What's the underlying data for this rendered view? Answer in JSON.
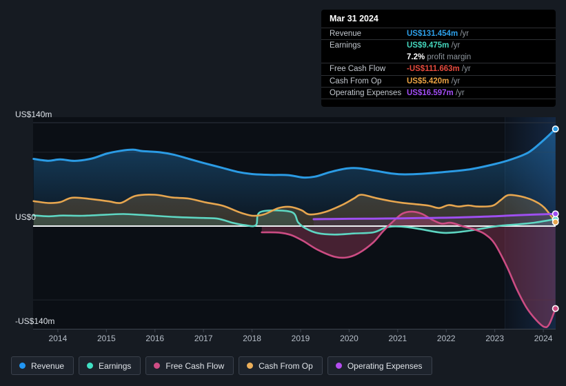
{
  "tooltip": {
    "date": "Mar 31 2024",
    "rows": [
      {
        "label": "Revenue",
        "value": "US$131.454m",
        "suffix": " /yr",
        "color": "#2d9fe8"
      },
      {
        "label": "Earnings",
        "value": "US$9.475m",
        "suffix": " /yr",
        "color": "#45d6bd"
      },
      {
        "label": "",
        "value": "7.2%",
        "suffix": " profit margin",
        "color": "#ffffff"
      },
      {
        "label": "Free Cash Flow",
        "value": "-US$111.663m",
        "suffix": " /yr",
        "color": "#e64a3d"
      },
      {
        "label": "Cash From Op",
        "value": "US$5.420m",
        "suffix": " /yr",
        "color": "#eaa243"
      },
      {
        "label": "Operating Expenses",
        "value": "US$16.597m",
        "suffix": " /yr",
        "color": "#a14df5"
      }
    ]
  },
  "y_axis": {
    "top_label": "US$140m",
    "zero_label": "US$0",
    "bottom_label": "-US$140m"
  },
  "x_axis": {
    "years": [
      "2014",
      "2015",
      "2016",
      "2017",
      "2018",
      "2019",
      "2020",
      "2021",
      "2022",
      "2023",
      "2024"
    ]
  },
  "legend": [
    {
      "label": "Revenue",
      "color": "#2196f3"
    },
    {
      "label": "Earnings",
      "color": "#40e0c4"
    },
    {
      "label": "Free Cash Flow",
      "color": "#cf4d85"
    },
    {
      "label": "Cash From Op",
      "color": "#ecaf5a"
    },
    {
      "label": "Operating Expenses",
      "color": "#b44df0"
    }
  ],
  "chart_data": {
    "type": "area",
    "title": "Earnings and revenue history (US$ millions per year)",
    "x_range": [
      2013.49,
      2024.26
    ],
    "ylim": [
      -140,
      140
    ],
    "y_gridlines": [
      140,
      100,
      0,
      -100,
      -140
    ],
    "highlight_band": {
      "from": 2023.21,
      "to": 2024.27
    },
    "legend_position": "bottom",
    "series": [
      {
        "name": "Revenue",
        "key": "revenue",
        "color": "#2b9be4",
        "points": [
          [
            2013.5,
            91
          ],
          [
            2013.8,
            88.5
          ],
          [
            2014.05,
            90.3
          ],
          [
            2014.35,
            88.3
          ],
          [
            2014.7,
            91.5
          ],
          [
            2015,
            98
          ],
          [
            2015.3,
            102
          ],
          [
            2015.55,
            103.5
          ],
          [
            2015.75,
            101.5
          ],
          [
            2016.1,
            100
          ],
          [
            2016.4,
            96.5
          ],
          [
            2016.7,
            91
          ],
          [
            2017,
            85.5
          ],
          [
            2017.35,
            79.5
          ],
          [
            2017.7,
            73.5
          ],
          [
            2018,
            70.5
          ],
          [
            2018.4,
            69.3
          ],
          [
            2018.75,
            69
          ],
          [
            2019.05,
            65.8
          ],
          [
            2019.3,
            67
          ],
          [
            2019.6,
            73
          ],
          [
            2019.95,
            78
          ],
          [
            2020.2,
            78.3
          ],
          [
            2020.55,
            74.8
          ],
          [
            2020.9,
            71
          ],
          [
            2021.15,
            70
          ],
          [
            2021.5,
            70.8
          ],
          [
            2022,
            73.5
          ],
          [
            2022.5,
            77
          ],
          [
            2023,
            84
          ],
          [
            2023.35,
            90.5
          ],
          [
            2023.7,
            100
          ],
          [
            2024,
            116
          ],
          [
            2024.25,
            131.454
          ]
        ]
      },
      {
        "name": "Earnings",
        "key": "earnings",
        "color": "#5ed6c2",
        "points": [
          [
            2013.5,
            14.5
          ],
          [
            2013.8,
            13.3
          ],
          [
            2014.1,
            14.3
          ],
          [
            2014.5,
            14
          ],
          [
            2015,
            15.5
          ],
          [
            2015.35,
            16.3
          ],
          [
            2015.7,
            15.2
          ],
          [
            2016,
            14
          ],
          [
            2016.5,
            12
          ],
          [
            2017,
            11
          ],
          [
            2017.3,
            10
          ],
          [
            2017.6,
            4.5
          ],
          [
            2017.85,
            1.3
          ],
          [
            2018.08,
            1.3
          ],
          [
            2018.18,
            19.3
          ],
          [
            2018.8,
            19.3
          ],
          [
            2018.95,
            5
          ],
          [
            2019.1,
            -3
          ],
          [
            2019.35,
            -9.5
          ],
          [
            2019.7,
            -11.5
          ],
          [
            2020.1,
            -10
          ],
          [
            2020.5,
            -8.5
          ],
          [
            2020.75,
            -2
          ],
          [
            2020.95,
            -0.5
          ],
          [
            2021.2,
            -1.5
          ],
          [
            2021.5,
            -4.5
          ],
          [
            2021.9,
            -9
          ],
          [
            2022.2,
            -8.5
          ],
          [
            2022.6,
            -5
          ],
          [
            2022.95,
            -1
          ],
          [
            2023.2,
            1
          ],
          [
            2023.5,
            2.5
          ],
          [
            2023.85,
            5
          ],
          [
            2024.25,
            9.475
          ]
        ]
      },
      {
        "name": "Free Cash Flow",
        "key": "free_cash_flow",
        "color": "#cc4c83",
        "points": [
          [
            2018.2,
            -8.5
          ],
          [
            2018.55,
            -8.8
          ],
          [
            2018.8,
            -12
          ],
          [
            2019.05,
            -20
          ],
          [
            2019.35,
            -32
          ],
          [
            2019.7,
            -41.5
          ],
          [
            2019.95,
            -42.5
          ],
          [
            2020.2,
            -36.5
          ],
          [
            2020.5,
            -22
          ],
          [
            2020.7,
            -7
          ],
          [
            2020.9,
            6
          ],
          [
            2021.1,
            17
          ],
          [
            2021.3,
            19.5
          ],
          [
            2021.5,
            16.5
          ],
          [
            2021.7,
            9
          ],
          [
            2021.9,
            3.5
          ],
          [
            2022.1,
            4.5
          ],
          [
            2022.35,
            -0.5
          ],
          [
            2022.6,
            -5
          ],
          [
            2022.8,
            -11
          ],
          [
            2023,
            -24
          ],
          [
            2023.25,
            -55
          ],
          [
            2023.45,
            -85
          ],
          [
            2023.65,
            -110
          ],
          [
            2023.85,
            -127
          ],
          [
            2024.02,
            -136.5
          ],
          [
            2024.12,
            -133
          ],
          [
            2024.25,
            -111.663
          ]
        ]
      },
      {
        "name": "Cash From Op",
        "key": "cash_from_op",
        "color": "#e7a64f",
        "points": [
          [
            2013.5,
            33.8
          ],
          [
            2013.8,
            31.3
          ],
          [
            2014.05,
            32.5
          ],
          [
            2014.3,
            38.5
          ],
          [
            2014.7,
            36.5
          ],
          [
            2015.05,
            33.5
          ],
          [
            2015.3,
            31.5
          ],
          [
            2015.6,
            41
          ],
          [
            2016,
            42.5
          ],
          [
            2016.35,
            38.8
          ],
          [
            2016.7,
            37.2
          ],
          [
            2017.05,
            32
          ],
          [
            2017.4,
            27.5
          ],
          [
            2017.75,
            18.5
          ],
          [
            2018.02,
            14
          ],
          [
            2018.25,
            16
          ],
          [
            2018.55,
            24.5
          ],
          [
            2018.78,
            26
          ],
          [
            2019.02,
            21.5
          ],
          [
            2019.18,
            15.8
          ],
          [
            2019.5,
            19
          ],
          [
            2019.85,
            28.5
          ],
          [
            2020.1,
            37.5
          ],
          [
            2020.25,
            42.5
          ],
          [
            2020.55,
            38
          ],
          [
            2020.85,
            34
          ],
          [
            2021.1,
            31.5
          ],
          [
            2021.4,
            29.5
          ],
          [
            2021.65,
            27.5
          ],
          [
            2021.85,
            24.5
          ],
          [
            2022.05,
            28.5
          ],
          [
            2022.25,
            26.5
          ],
          [
            2022.45,
            28
          ],
          [
            2022.65,
            26.5
          ],
          [
            2022.95,
            27.5
          ],
          [
            2023.12,
            35
          ],
          [
            2023.28,
            42
          ],
          [
            2023.55,
            40
          ],
          [
            2023.8,
            34.5
          ],
          [
            2024.02,
            25
          ],
          [
            2024.25,
            5.42
          ]
        ]
      },
      {
        "name": "Operating Expenses",
        "key": "operating_expenses",
        "color": "#9e4ff0",
        "points": [
          [
            2019.27,
            9.3
          ],
          [
            2019.6,
            9.6
          ],
          [
            2020,
            9.9
          ],
          [
            2020.5,
            10.1
          ],
          [
            2021,
            10.4
          ],
          [
            2021.5,
            10.9
          ],
          [
            2022,
            11.3
          ],
          [
            2022.35,
            11.9
          ],
          [
            2022.7,
            12.6
          ],
          [
            2023,
            13.3
          ],
          [
            2023.3,
            14.3
          ],
          [
            2023.65,
            15.2
          ],
          [
            2024,
            16
          ],
          [
            2024.25,
            16.597
          ]
        ]
      }
    ]
  }
}
